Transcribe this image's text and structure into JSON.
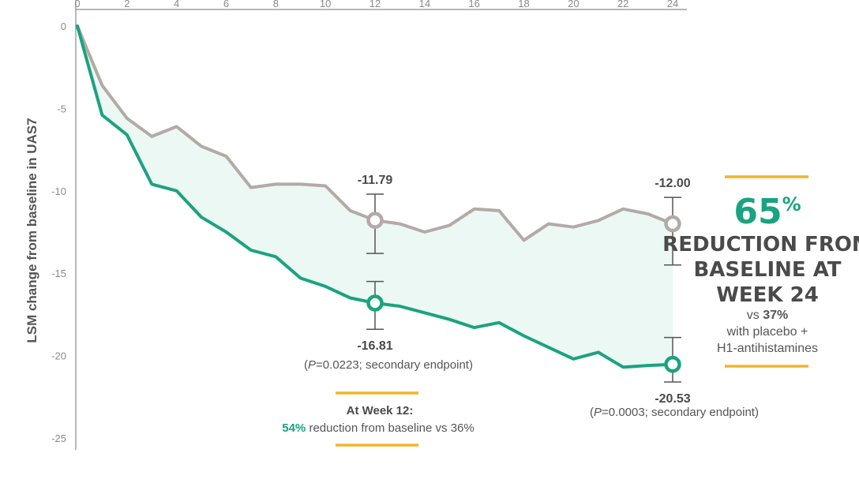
{
  "chart_data": {
    "type": "line",
    "ylabel": "LSM change from baseline in UAS7",
    "xlabel": "",
    "xlim": [
      0,
      24
    ],
    "ylim": [
      -25,
      0
    ],
    "x_ticks": [
      0,
      2,
      4,
      6,
      8,
      10,
      12,
      14,
      16,
      18,
      20,
      22,
      24
    ],
    "y_ticks": [
      0,
      -5,
      -10,
      -15,
      -20,
      -25
    ],
    "x": [
      0,
      1,
      2,
      3,
      4,
      5,
      6,
      7,
      8,
      9,
      10,
      11,
      12,
      13,
      14,
      15,
      16,
      17,
      18,
      19,
      20,
      21,
      22,
      23,
      24
    ],
    "series": [
      {
        "color": "#1aa37f",
        "values": [
          0,
          -5.4,
          -6.6,
          -9.6,
          -10,
          -11.6,
          -12.5,
          -13.6,
          -14,
          -15.3,
          -15.8,
          -16.5,
          -16.81,
          -17,
          -17.4,
          -17.8,
          -18.3,
          -18,
          -18.8,
          -19.5,
          -20.2,
          -19.8,
          -20.7,
          -20.6,
          -20.53
        ],
        "markers": [
          {
            "x": 12,
            "y": -16.81,
            "label": "-16.81",
            "err_low": -18.4,
            "err_high": -15.5
          },
          {
            "x": 24,
            "y": -20.53,
            "label": "-20.53",
            "err_low": -21.6,
            "err_high": -18.9
          }
        ]
      },
      {
        "color": "#b3aaa6",
        "values": [
          0,
          -3.6,
          -5.6,
          -6.7,
          -6.1,
          -7.3,
          -7.9,
          -9.8,
          -9.6,
          -9.6,
          -9.7,
          -11.2,
          -11.79,
          -12,
          -12.5,
          -12.1,
          -11.1,
          -11.2,
          -13,
          -12,
          -12.2,
          -11.8,
          -11.1,
          -11.4,
          -12.0
        ],
        "markers": [
          {
            "x": 12,
            "y": -11.79,
            "label": "-11.79",
            "err_low": -13.8,
            "err_high": -10.2
          },
          {
            "x": 24,
            "y": -12.0,
            "label": "-12.00",
            "err_low": -14.5,
            "err_high": -10.4
          }
        ]
      }
    ],
    "annotations": {
      "p12_prefix": "(",
      "p12_italic": "P",
      "p12_rest": "=0.0223; secondary endpoint)",
      "p24_prefix": "(",
      "p24_italic": "P",
      "p24_rest": "=0.0003; secondary endpoint)",
      "wk12_head": "At Week 12:",
      "wk12_pct": "54%",
      "wk12_rest": " reduction from baseline vs 36%"
    }
  },
  "callout": {
    "pct_value": "65",
    "pct_symbol": "%",
    "line1": "REDUCTION FROM",
    "line2": "BASELINE AT",
    "line3": "WEEK 24",
    "vs_prefix": "vs ",
    "vs_value": "37%",
    "line5": "with placebo +",
    "line6": "H1-antihistamines"
  },
  "colors": {
    "active": "#1aa37f",
    "placebo": "#b3aaa6",
    "accent": "#f2b52a",
    "fill": "#ecf8f3"
  }
}
